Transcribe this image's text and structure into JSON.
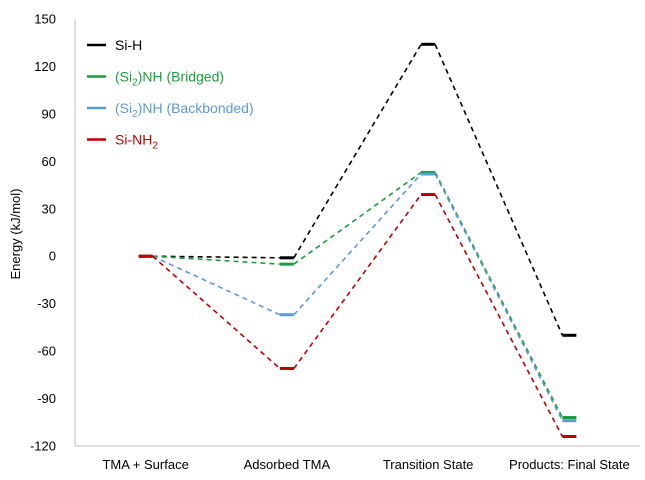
{
  "chart_data": {
    "type": "line",
    "title": "",
    "xlabel": "",
    "ylabel": "Energy (kJ/mol)",
    "categories": [
      "TMA + Surface",
      "Adsorbed TMA",
      "Transition State",
      "Products: Final State"
    ],
    "ylim": [
      -120,
      150
    ],
    "yticks": [
      150,
      120,
      90,
      60,
      30,
      0,
      -30,
      -60,
      -90,
      -120
    ],
    "grid": false,
    "legend_position": "top-left",
    "series": [
      {
        "name": "Si-H",
        "label_base": "Si-H",
        "label_sub": "",
        "label_suffix": "",
        "color": "#000000",
        "values": [
          0,
          -1,
          134,
          -50
        ]
      },
      {
        "name": "(Si2)NH (Bridged)",
        "label_base": "(Si",
        "label_sub": "2",
        "label_suffix": ")NH (Bridged)",
        "color": "#1a9e3c",
        "values": [
          0,
          -5,
          53,
          -102
        ]
      },
      {
        "name": "(Si2)NH (Backbonded)",
        "label_base": "(Si",
        "label_sub": "2",
        "label_suffix": ")NH (Backbonded)",
        "color": "#5b9bd5",
        "values": [
          0,
          -37,
          52,
          -104
        ]
      },
      {
        "name": "Si-NH2",
        "label_base": "Si-NH",
        "label_sub": "2",
        "label_suffix": "",
        "color": "#c00000",
        "values": [
          0,
          -71,
          39,
          -114
        ]
      }
    ]
  }
}
